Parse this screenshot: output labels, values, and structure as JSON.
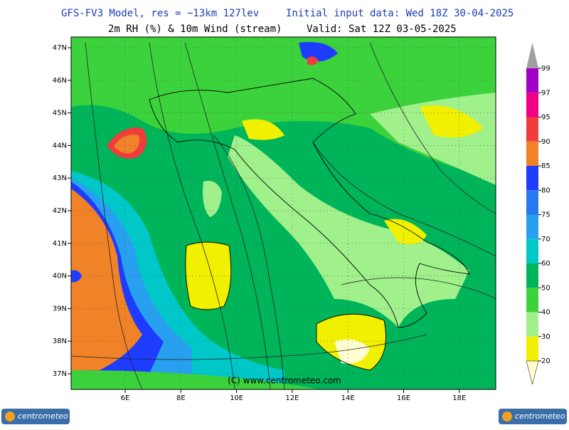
{
  "header": {
    "title": "GFS-FV3 Model, res = ~13km 127lev",
    "init": "Initial input data: Wed 18Z 30-04-2025",
    "subtitle": "2m RH (%) & 10m Wind (stream)",
    "valid": "Valid: Sat 12Z 03-05-2025"
  },
  "map": {
    "lat_labels": [
      "47N",
      "46N",
      "45N",
      "44N",
      "43N",
      "42N",
      "41N",
      "40N",
      "39N",
      "38N",
      "37N"
    ],
    "lon_labels": [
      "6E",
      "8E",
      "10E",
      "12E",
      "14E",
      "16E",
      "18E"
    ],
    "copyright": "(C) www.centrometeo.com"
  },
  "colorbar": {
    "labels": [
      "99",
      "97",
      "95",
      "90",
      "85",
      "80",
      "75",
      "70",
      "60",
      "50",
      "40",
      "30",
      "20"
    ],
    "top_color": "#a0a0a0",
    "segment_colors": [
      "#a000c8",
      "#f00082",
      "#f03c3c",
      "#f08228",
      "#1e3cff",
      "#2878f0",
      "#28a0f0",
      "#00c8c8",
      "#00b45a",
      "#3cd23c",
      "#a0f08c",
      "#f0f000"
    ],
    "bottom_color": "#ffffd2"
  },
  "logos": [
    "centrometeo",
    "centrometeo"
  ]
}
